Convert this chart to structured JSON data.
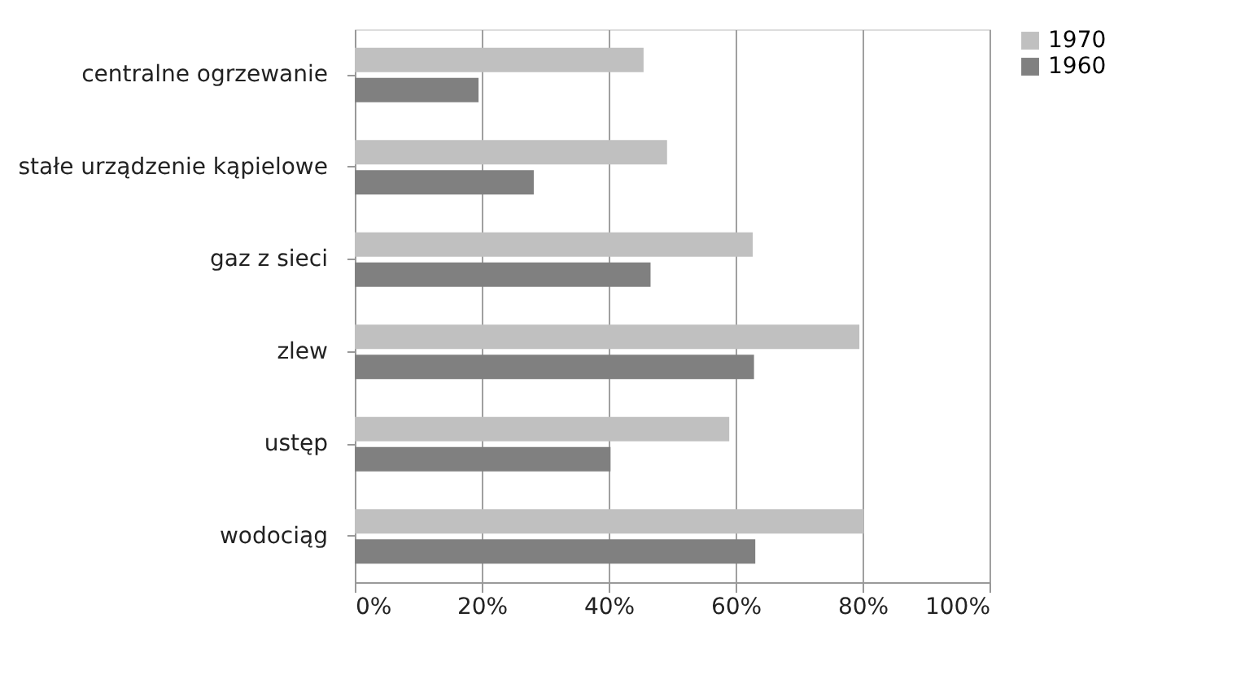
{
  "chart_data": {
    "type": "bar",
    "orientation": "horizontal",
    "categories": [
      "centralne ogrzewanie",
      "stałe urządzenie kąpielowe",
      "gaz z sieci",
      "zlew",
      "ustęp",
      "wodociąg"
    ],
    "series": [
      {
        "name": "1970",
        "color": "#c0c0c0",
        "values": [
          45.5,
          49.2,
          62.7,
          79.5,
          59.0,
          80.2
        ]
      },
      {
        "name": "1960",
        "color": "#808080",
        "values": [
          19.5,
          28.2,
          46.6,
          62.9,
          40.3,
          63.1
        ]
      }
    ],
    "xlim": [
      0,
      100
    ],
    "xticks": [
      {
        "value": 0,
        "label": "0%"
      },
      {
        "value": 20,
        "label": "20%"
      },
      {
        "value": 40,
        "label": "40%"
      },
      {
        "value": 60,
        "label": "60%"
      },
      {
        "value": 80,
        "label": "80%"
      },
      {
        "value": 100,
        "label": "100%"
      }
    ],
    "grid": "x",
    "legend": "right"
  }
}
